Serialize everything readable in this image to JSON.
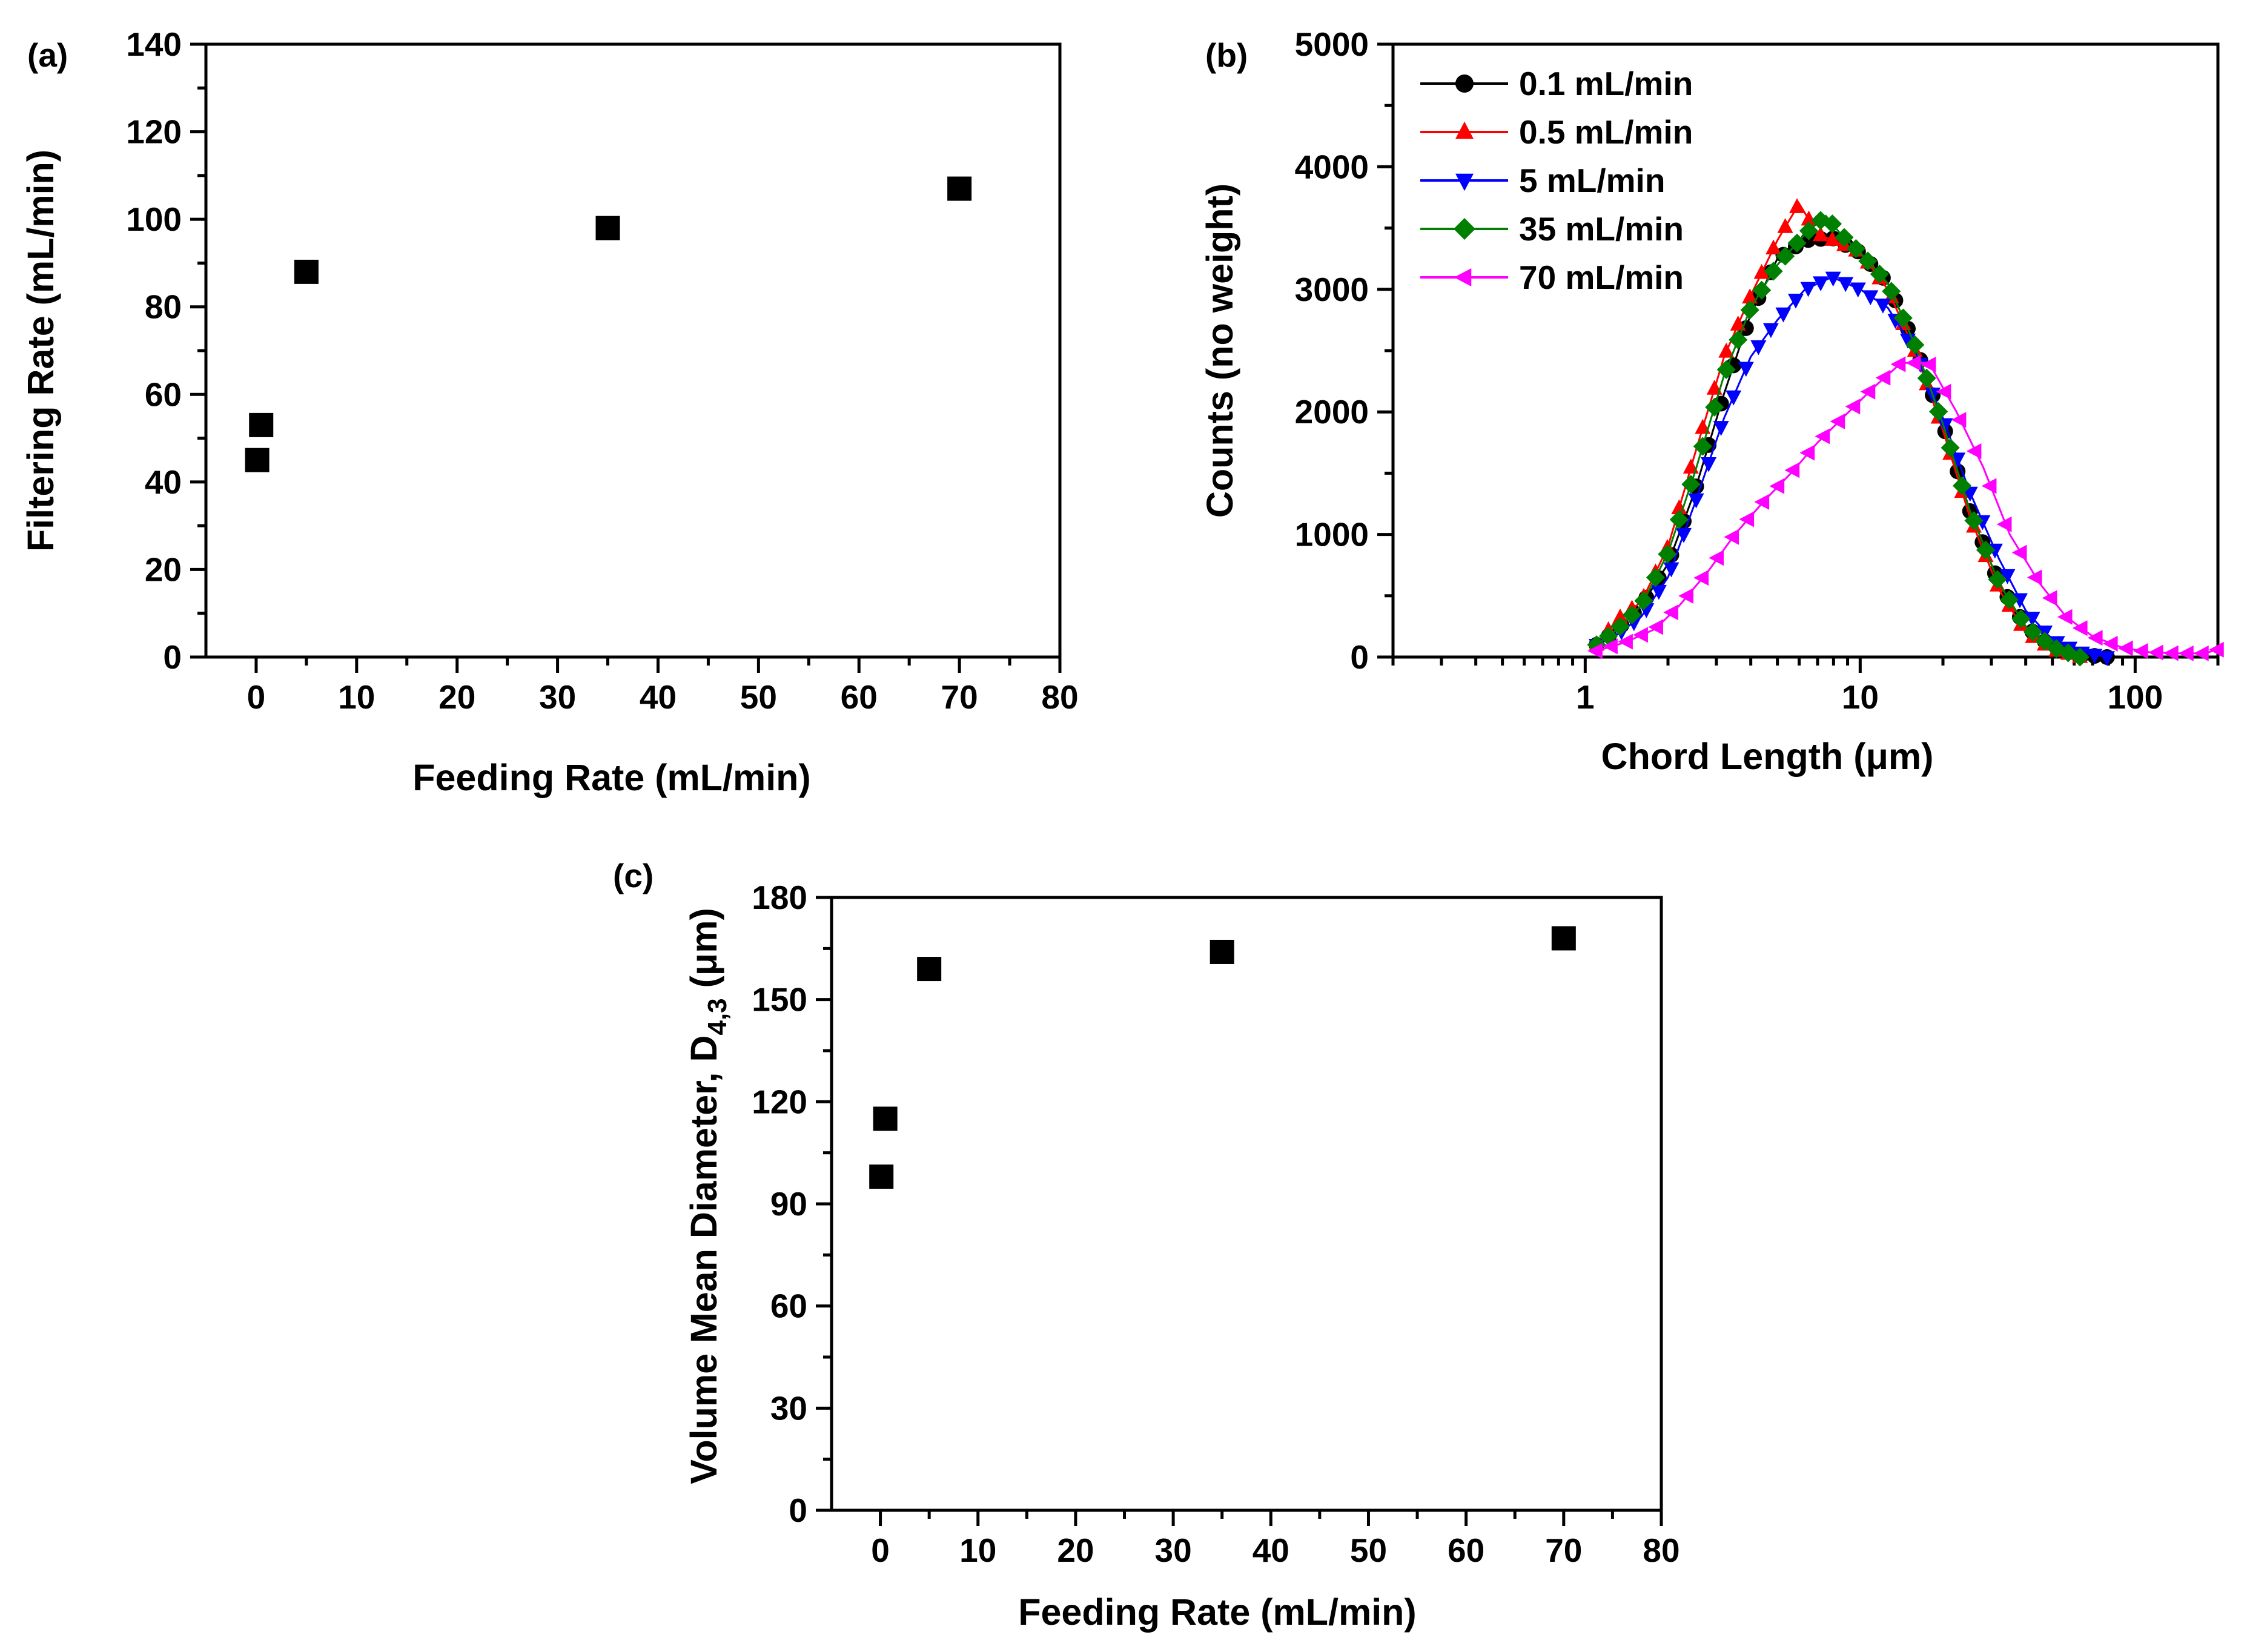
{
  "colors": {
    "black": "#000000",
    "red": "#ff0000",
    "blue": "#0000ff",
    "green": "#008000",
    "magenta": "#ff00ff"
  },
  "chart_data": [
    {
      "panel": "(a)",
      "type": "scatter",
      "xlabel": "Feeding Rate (mL/min)",
      "ylabel": "Filtering Rate (mL/min)",
      "xlim": [
        -5,
        80
      ],
      "ylim": [
        0,
        140
      ],
      "xticks": [
        0,
        10,
        20,
        30,
        40,
        50,
        60,
        70,
        80
      ],
      "yticks": [
        0,
        20,
        40,
        60,
        80,
        100,
        120,
        140
      ],
      "grid": false,
      "series": [
        {
          "marker": "square",
          "color": "#000000",
          "x": [
            0.1,
            0.5,
            5,
            35,
            70
          ],
          "y": [
            45,
            53,
            88,
            98,
            107
          ]
        }
      ]
    },
    {
      "panel": "(b)",
      "type": "line",
      "xlabel": "Chord Length (μm)",
      "ylabel": "Counts (no weight)",
      "xscale": "log",
      "xlim": [
        0.2,
        200
      ],
      "ylim": [
        0,
        5000
      ],
      "xticks": [
        1,
        10,
        100
      ],
      "xtick_labels": [
        "1",
        "10",
        "100"
      ],
      "yticks": [
        0,
        1000,
        2000,
        3000,
        4000,
        5000
      ],
      "grid": false,
      "legend": "top-left",
      "series": [
        {
          "name": "0.1 mL/min",
          "color": "#000000",
          "marker": "circle",
          "x": [
            1.1,
            1.3,
            1.6,
            2.0,
            2.5,
            3.2,
            4.0,
            5.0,
            6.3,
            7.9,
            10,
            12.6,
            15.8,
            20,
            25,
            32,
            40,
            50,
            63,
            79
          ],
          "y": [
            100,
            220,
            420,
            760,
            1350,
            2150,
            2800,
            3250,
            3400,
            3420,
            3300,
            3050,
            2550,
            1900,
            1200,
            600,
            250,
            80,
            20,
            0
          ]
        },
        {
          "name": "0.5 mL/min",
          "color": "#ff0000",
          "marker": "triangle-up",
          "x": [
            1.1,
            1.3,
            1.6,
            2.0,
            2.5,
            3.2,
            4.0,
            5.0,
            6.0,
            7.0,
            8.0,
            10,
            12.6,
            15.8,
            20,
            25,
            32,
            40,
            50,
            63
          ],
          "y": [
            100,
            300,
            450,
            900,
            1650,
            2450,
            2950,
            3400,
            3700,
            3450,
            3400,
            3300,
            3000,
            2500,
            1850,
            1150,
            550,
            200,
            60,
            0
          ]
        },
        {
          "name": "5 mL/min",
          "color": "#0000ff",
          "marker": "triangle-down",
          "x": [
            1.1,
            1.3,
            1.6,
            2.0,
            2.5,
            3.2,
            4.0,
            5.0,
            6.3,
            7.9,
            10,
            12.6,
            15.8,
            20,
            25,
            32,
            40,
            50,
            63,
            79
          ],
          "y": [
            100,
            180,
            330,
            650,
            1250,
            1950,
            2450,
            2750,
            3000,
            3100,
            3000,
            2850,
            2500,
            1950,
            1350,
            800,
            380,
            140,
            40,
            0
          ]
        },
        {
          "name": "35 mL/min",
          "color": "#008000",
          "marker": "diamond",
          "x": [
            1.1,
            1.3,
            1.6,
            2.0,
            2.5,
            3.2,
            4.0,
            5.0,
            6.3,
            7.5,
            8.5,
            10,
            12.6,
            15.8,
            20,
            25,
            32,
            40,
            50,
            63
          ],
          "y": [
            100,
            220,
            420,
            850,
            1500,
            2300,
            2850,
            3200,
            3450,
            3600,
            3450,
            3300,
            3050,
            2550,
            1900,
            1200,
            600,
            250,
            80,
            0
          ]
        },
        {
          "name": "70 mL/min",
          "color": "#ff00ff",
          "marker": "triangle-left",
          "x": [
            1.1,
            1.4,
            1.8,
            2.2,
            2.8,
            3.5,
            4.5,
            5.6,
            7.0,
            8.9,
            11.2,
            14.1,
            17.8,
            22.4,
            28,
            35,
            45,
            56,
            70,
            89,
            112,
            141,
            178,
            200
          ],
          "y": [
            50,
            120,
            230,
            420,
            700,
            1000,
            1280,
            1500,
            1750,
            1980,
            2200,
            2400,
            2400,
            2000,
            1550,
            1000,
            600,
            330,
            170,
            80,
            40,
            30,
            30,
            60
          ]
        }
      ]
    },
    {
      "panel": "(c)",
      "type": "scatter",
      "xlabel": "Feeding Rate (mL/min)",
      "ylabel_main": "Volume Mean Diameter, D",
      "ylabel_sub": "4,3",
      "ylabel_unit": " (μm)",
      "xlim": [
        -5,
        80
      ],
      "ylim": [
        0,
        180
      ],
      "xticks": [
        0,
        10,
        20,
        30,
        40,
        50,
        60,
        70,
        80
      ],
      "yticks": [
        0,
        30,
        60,
        90,
        120,
        150,
        180
      ],
      "grid": false,
      "series": [
        {
          "marker": "square",
          "color": "#000000",
          "x": [
            0.1,
            0.5,
            5,
            35,
            70
          ],
          "y": [
            98,
            115,
            159,
            164,
            168
          ]
        }
      ]
    }
  ]
}
